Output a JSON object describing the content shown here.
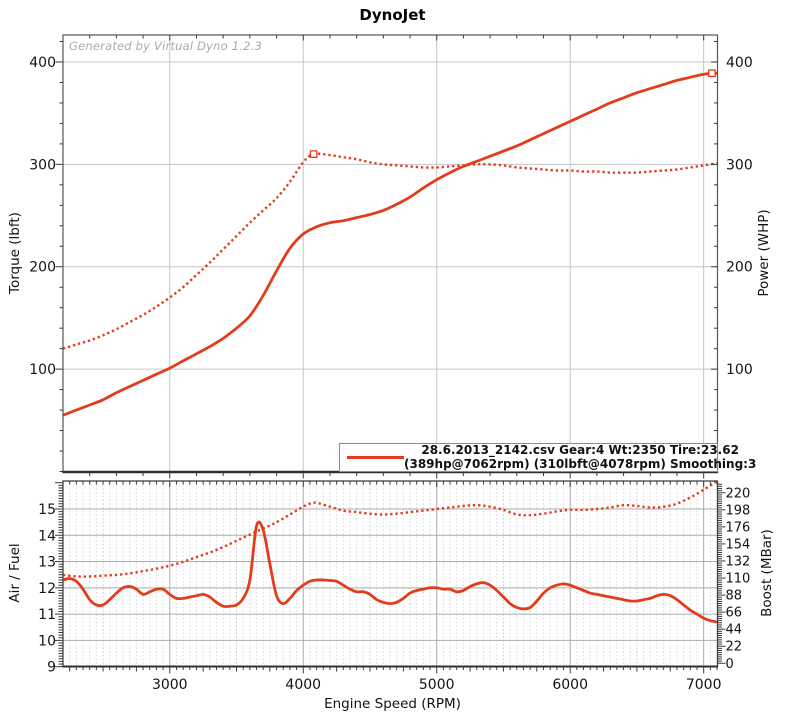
{
  "ui": {
    "watermark": "Generated by Virtual Dyno 1.2.3",
    "legend": {
      "line1": "28.6.2013_2142.csv Gear:4 Wt:2350 Tire:23.62",
      "line2": "(389hp@7062rpm) (310lbft@4078rpm) Smoothing:3"
    }
  },
  "colors": {
    "curve_red": "#e23c1d",
    "grid_major": "#c5c5c5",
    "grid_minor_dot": "#d9d9d9",
    "grid_mid_dot": "#c2c2c2",
    "grid_solid_minor": "#ababab",
    "axis_dark": "#2f2f2f",
    "border": "#555555",
    "tick": "#3a3a3a",
    "label": "#141414"
  },
  "chart_data": [
    {
      "type": "line",
      "title": "DynoJet",
      "x_label": "Engine Speed (RPM)",
      "x_range": [
        2200,
        7100
      ],
      "x_major_ticks": [
        3000,
        4000,
        5000,
        6000,
        7000
      ],
      "left_axis": {
        "label": "Torque (lbft)",
        "ticks": [
          100,
          200,
          300,
          400
        ],
        "range": [
          0,
          426
        ]
      },
      "right_axis": {
        "label": "Power (WHP)",
        "ticks": [
          100,
          200,
          300,
          400
        ],
        "range": [
          0,
          426
        ]
      },
      "annotations": [
        {
          "name": "torque-peak-marker",
          "label": "310lbft@4078rpm",
          "x": 4078,
          "y": 310
        },
        {
          "name": "power-peak-marker",
          "label": "389hp@7062rpm",
          "x": 7062,
          "y": 389
        }
      ],
      "series": [
        {
          "name": "power_whp",
          "axis": "right",
          "style": "solid",
          "points": [
            [
              2200,
              55
            ],
            [
              2300,
              60
            ],
            [
              2400,
              65
            ],
            [
              2500,
              70
            ],
            [
              2600,
              77
            ],
            [
              2700,
              83
            ],
            [
              2800,
              89
            ],
            [
              2900,
              95
            ],
            [
              3000,
              101
            ],
            [
              3100,
              108
            ],
            [
              3200,
              115
            ],
            [
              3300,
              122
            ],
            [
              3400,
              130
            ],
            [
              3500,
              140
            ],
            [
              3600,
              152
            ],
            [
              3700,
              172
            ],
            [
              3800,
              196
            ],
            [
              3900,
              218
            ],
            [
              4000,
              232
            ],
            [
              4100,
              239
            ],
            [
              4200,
              243
            ],
            [
              4300,
              245
            ],
            [
              4400,
              248
            ],
            [
              4500,
              251
            ],
            [
              4600,
              255
            ],
            [
              4700,
              261
            ],
            [
              4800,
              268
            ],
            [
              4900,
              277
            ],
            [
              5000,
              285
            ],
            [
              5100,
              292
            ],
            [
              5200,
              298
            ],
            [
              5300,
              303
            ],
            [
              5400,
              308
            ],
            [
              5500,
              313
            ],
            [
              5600,
              318
            ],
            [
              5700,
              324
            ],
            [
              5800,
              330
            ],
            [
              5900,
              336
            ],
            [
              6000,
              342
            ],
            [
              6100,
              348
            ],
            [
              6200,
              354
            ],
            [
              6300,
              360
            ],
            [
              6400,
              365
            ],
            [
              6500,
              370
            ],
            [
              6600,
              374
            ],
            [
              6700,
              378
            ],
            [
              6800,
              382
            ],
            [
              6900,
              385
            ],
            [
              7000,
              388
            ],
            [
              7062,
              389
            ],
            [
              7100,
              389
            ]
          ]
        },
        {
          "name": "torque_lbft",
          "axis": "left",
          "style": "dotted",
          "points": [
            [
              2200,
              120
            ],
            [
              2300,
              124
            ],
            [
              2400,
              128
            ],
            [
              2500,
              133
            ],
            [
              2600,
              139
            ],
            [
              2700,
              146
            ],
            [
              2800,
              153
            ],
            [
              2900,
              161
            ],
            [
              3000,
              170
            ],
            [
              3100,
              180
            ],
            [
              3200,
              192
            ],
            [
              3300,
              204
            ],
            [
              3400,
              217
            ],
            [
              3500,
              230
            ],
            [
              3600,
              243
            ],
            [
              3700,
              255
            ],
            [
              3800,
              267
            ],
            [
              3900,
              283
            ],
            [
              4000,
              302
            ],
            [
              4078,
              310
            ],
            [
              4200,
              309
            ],
            [
              4300,
              307
            ],
            [
              4400,
              305
            ],
            [
              4500,
              302
            ],
            [
              4600,
              300
            ],
            [
              4700,
              299
            ],
            [
              4800,
              298
            ],
            [
              4900,
              297
            ],
            [
              5000,
              297
            ],
            [
              5100,
              298
            ],
            [
              5200,
              299
            ],
            [
              5300,
              300
            ],
            [
              5400,
              300
            ],
            [
              5500,
              299
            ],
            [
              5600,
              297
            ],
            [
              5700,
              296
            ],
            [
              5800,
              295
            ],
            [
              5900,
              294
            ],
            [
              6000,
              294
            ],
            [
              6100,
              293
            ],
            [
              6200,
              293
            ],
            [
              6300,
              292
            ],
            [
              6400,
              292
            ],
            [
              6500,
              292
            ],
            [
              6600,
              293
            ],
            [
              6700,
              294
            ],
            [
              6800,
              295
            ],
            [
              6900,
              297
            ],
            [
              7000,
              299
            ],
            [
              7100,
              301
            ]
          ]
        }
      ]
    },
    {
      "type": "line",
      "x_label": "Engine Speed (RPM)",
      "x_range": [
        2200,
        7100
      ],
      "x_major_ticks": [
        3000,
        4000,
        5000,
        6000,
        7000
      ],
      "left_axis": {
        "label": "Air / Fuel",
        "ticks": [
          9,
          10,
          11,
          12,
          13,
          14,
          15
        ],
        "range": [
          9,
          16.1
        ]
      },
      "right_axis": {
        "label": "Boost (MBar)",
        "ticks": [
          0,
          22,
          44,
          66,
          88,
          110,
          132,
          154,
          176,
          198,
          220
        ],
        "range": [
          0,
          235
        ]
      },
      "annotations": [],
      "series": [
        {
          "name": "air_fuel",
          "axis": "left",
          "style": "solid",
          "points": [
            [
              2200,
              12.3
            ],
            [
              2250,
              12.35
            ],
            [
              2300,
              12.25
            ],
            [
              2350,
              11.95
            ],
            [
              2400,
              11.55
            ],
            [
              2450,
              11.35
            ],
            [
              2500,
              11.35
            ],
            [
              2550,
              11.55
            ],
            [
              2600,
              11.8
            ],
            [
              2650,
              12.0
            ],
            [
              2700,
              12.05
            ],
            [
              2750,
              11.95
            ],
            [
              2800,
              11.75
            ],
            [
              2850,
              11.85
            ],
            [
              2900,
              11.95
            ],
            [
              2950,
              11.95
            ],
            [
              3000,
              11.75
            ],
            [
              3050,
              11.6
            ],
            [
              3100,
              11.6
            ],
            [
              3150,
              11.65
            ],
            [
              3200,
              11.7
            ],
            [
              3250,
              11.75
            ],
            [
              3300,
              11.65
            ],
            [
              3350,
              11.45
            ],
            [
              3400,
              11.3
            ],
            [
              3450,
              11.3
            ],
            [
              3500,
              11.35
            ],
            [
              3550,
              11.6
            ],
            [
              3600,
              12.3
            ],
            [
              3650,
              14.35
            ],
            [
              3700,
              14.2
            ],
            [
              3750,
              12.9
            ],
            [
              3800,
              11.7
            ],
            [
              3850,
              11.4
            ],
            [
              3900,
              11.6
            ],
            [
              3950,
              11.9
            ],
            [
              4000,
              12.1
            ],
            [
              4050,
              12.25
            ],
            [
              4100,
              12.3
            ],
            [
              4150,
              12.3
            ],
            [
              4200,
              12.28
            ],
            [
              4250,
              12.25
            ],
            [
              4300,
              12.1
            ],
            [
              4350,
              11.95
            ],
            [
              4400,
              11.85
            ],
            [
              4450,
              11.85
            ],
            [
              4500,
              11.75
            ],
            [
              4550,
              11.55
            ],
            [
              4600,
              11.45
            ],
            [
              4650,
              11.4
            ],
            [
              4700,
              11.45
            ],
            [
              4750,
              11.6
            ],
            [
              4800,
              11.8
            ],
            [
              4850,
              11.9
            ],
            [
              4900,
              11.95
            ],
            [
              4950,
              12.0
            ],
            [
              5000,
              12.0
            ],
            [
              5050,
              11.95
            ],
            [
              5100,
              11.95
            ],
            [
              5150,
              11.85
            ],
            [
              5200,
              11.9
            ],
            [
              5250,
              12.05
            ],
            [
              5300,
              12.15
            ],
            [
              5350,
              12.2
            ],
            [
              5400,
              12.1
            ],
            [
              5450,
              11.9
            ],
            [
              5500,
              11.65
            ],
            [
              5550,
              11.4
            ],
            [
              5600,
              11.25
            ],
            [
              5650,
              11.2
            ],
            [
              5700,
              11.25
            ],
            [
              5750,
              11.5
            ],
            [
              5800,
              11.8
            ],
            [
              5850,
              12.0
            ],
            [
              5900,
              12.1
            ],
            [
              5950,
              12.15
            ],
            [
              6000,
              12.1
            ],
            [
              6050,
              12.0
            ],
            [
              6100,
              11.9
            ],
            [
              6150,
              11.8
            ],
            [
              6200,
              11.75
            ],
            [
              6250,
              11.7
            ],
            [
              6300,
              11.65
            ],
            [
              6350,
              11.6
            ],
            [
              6400,
              11.55
            ],
            [
              6450,
              11.5
            ],
            [
              6500,
              11.5
            ],
            [
              6550,
              11.55
            ],
            [
              6600,
              11.6
            ],
            [
              6650,
              11.7
            ],
            [
              6700,
              11.75
            ],
            [
              6750,
              11.7
            ],
            [
              6800,
              11.55
            ],
            [
              6850,
              11.35
            ],
            [
              6900,
              11.15
            ],
            [
              6950,
              11.0
            ],
            [
              7000,
              10.85
            ],
            [
              7050,
              10.75
            ],
            [
              7100,
              10.7
            ]
          ]
        },
        {
          "name": "boost_mbar",
          "axis": "right",
          "style": "dotted",
          "points": [
            [
              2200,
              114
            ],
            [
              2300,
              112
            ],
            [
              2400,
              112
            ],
            [
              2500,
              113
            ],
            [
              2600,
              114
            ],
            [
              2700,
              116
            ],
            [
              2800,
              119
            ],
            [
              2900,
              122
            ],
            [
              3000,
              126
            ],
            [
              3100,
              131
            ],
            [
              3200,
              137
            ],
            [
              3300,
              143
            ],
            [
              3400,
              150
            ],
            [
              3500,
              158
            ],
            [
              3600,
              166
            ],
            [
              3700,
              174
            ],
            [
              3800,
              182
            ],
            [
              3900,
              192
            ],
            [
              4000,
              202
            ],
            [
              4050,
              206
            ],
            [
              4100,
              207
            ],
            [
              4200,
              202
            ],
            [
              4300,
              197
            ],
            [
              4400,
              195
            ],
            [
              4500,
              193
            ],
            [
              4600,
              192
            ],
            [
              4700,
              193
            ],
            [
              4800,
              195
            ],
            [
              4900,
              197
            ],
            [
              5000,
              199
            ],
            [
              5100,
              201
            ],
            [
              5200,
              203
            ],
            [
              5300,
              204
            ],
            [
              5400,
              202
            ],
            [
              5500,
              198
            ],
            [
              5600,
              192
            ],
            [
              5700,
              191
            ],
            [
              5800,
              193
            ],
            [
              5900,
              196
            ],
            [
              6000,
              198
            ],
            [
              6100,
              198
            ],
            [
              6200,
              199
            ],
            [
              6300,
              201
            ],
            [
              6400,
              204
            ],
            [
              6500,
              203
            ],
            [
              6600,
              201
            ],
            [
              6700,
              202
            ],
            [
              6800,
              206
            ],
            [
              6900,
              214
            ],
            [
              7000,
              224
            ],
            [
              7100,
              235
            ]
          ]
        }
      ]
    }
  ]
}
